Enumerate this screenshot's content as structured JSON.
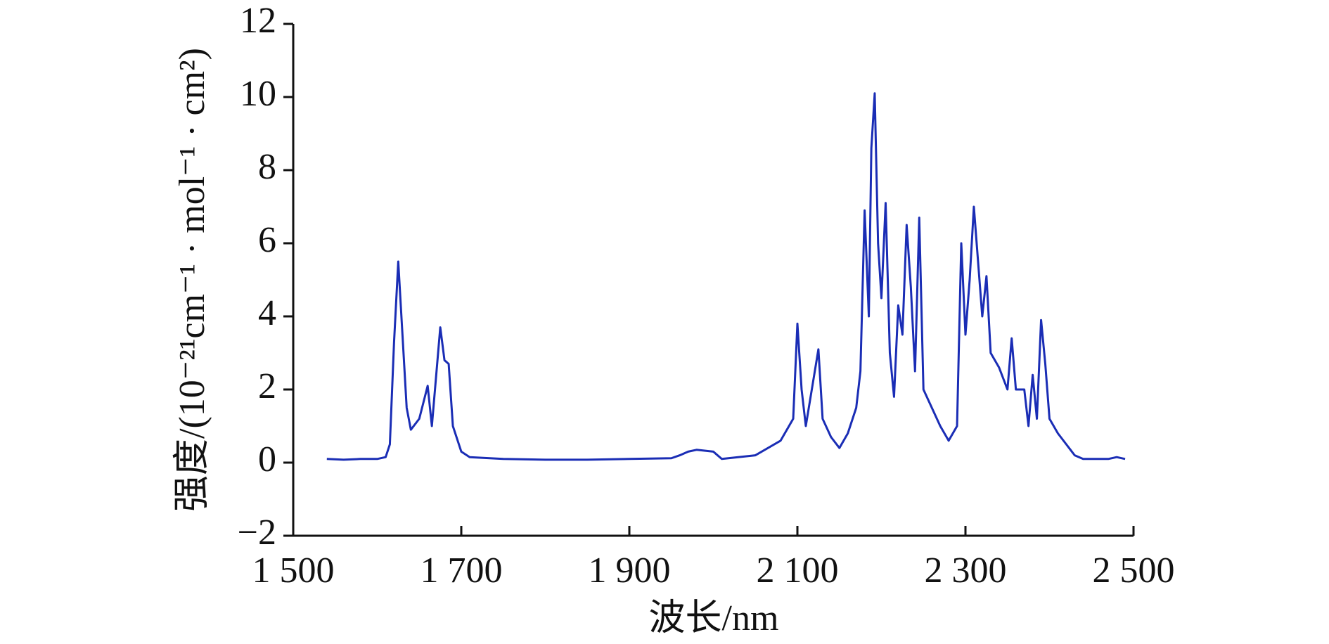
{
  "chart_data": {
    "type": "line",
    "xlabel": "波长/nm",
    "ylabel": "强度/(10⁻²¹cm⁻¹ · mol⁻¹ · cm²)",
    "xlim": [
      1500,
      2500
    ],
    "xticks": [
      {
        "value": 1500,
        "label": "1 500"
      },
      {
        "value": 1700,
        "label": "1 700"
      },
      {
        "value": 1900,
        "label": "1 900"
      },
      {
        "value": 2100,
        "label": "2 100"
      },
      {
        "value": 2300,
        "label": "2 300"
      },
      {
        "value": 2500,
        "label": "2 500"
      }
    ],
    "ylim": [
      -2,
      12
    ],
    "yticks": [
      {
        "value": -2,
        "label": "−2"
      },
      0,
      2,
      4,
      6,
      8,
      10,
      12
    ],
    "series": [
      {
        "color": "#1a2db5",
        "x": [
          1540,
          1560,
          1580,
          1600,
          1610,
          1615,
          1620,
          1625,
          1630,
          1635,
          1640,
          1650,
          1660,
          1665,
          1675,
          1680,
          1685,
          1690,
          1700,
          1710,
          1750,
          1800,
          1850,
          1900,
          1950,
          1960,
          1970,
          1980,
          2000,
          2010,
          2050,
          2080,
          2095,
          2100,
          2105,
          2110,
          2120,
          2125,
          2130,
          2140,
          2150,
          2160,
          2170,
          2175,
          2180,
          2185,
          2188,
          2192,
          2196,
          2200,
          2205,
          2210,
          2215,
          2220,
          2225,
          2230,
          2235,
          2240,
          2245,
          2250,
          2260,
          2270,
          2280,
          2290,
          2295,
          2300,
          2305,
          2310,
          2315,
          2320,
          2325,
          2330,
          2340,
          2350,
          2355,
          2360,
          2370,
          2375,
          2380,
          2385,
          2390,
          2395,
          2400,
          2410,
          2420,
          2430,
          2440,
          2450,
          2470,
          2480,
          2490
        ],
        "values": [
          0.1,
          0.08,
          0.1,
          0.1,
          0.15,
          0.5,
          3.3,
          5.5,
          3.5,
          1.5,
          0.9,
          1.2,
          2.1,
          1.0,
          3.7,
          2.8,
          2.7,
          1.0,
          0.3,
          0.15,
          0.1,
          0.08,
          0.08,
          0.1,
          0.12,
          0.2,
          0.3,
          0.35,
          0.3,
          0.1,
          0.2,
          0.6,
          1.2,
          3.8,
          2.0,
          1.0,
          2.4,
          3.1,
          1.2,
          0.7,
          0.4,
          0.8,
          1.5,
          2.5,
          6.9,
          4.0,
          8.6,
          10.1,
          6.0,
          4.5,
          7.1,
          3.0,
          1.8,
          4.3,
          3.5,
          6.5,
          4.8,
          2.5,
          6.7,
          2.0,
          1.5,
          1.0,
          0.6,
          1.0,
          6.0,
          3.5,
          5.0,
          7.0,
          5.5,
          4.0,
          5.1,
          3.0,
          2.6,
          2.0,
          3.4,
          2.0,
          2.0,
          1.0,
          2.4,
          1.2,
          3.9,
          2.7,
          1.2,
          0.8,
          0.5,
          0.2,
          0.1,
          0.1,
          0.1,
          0.15,
          0.1
        ]
      }
    ]
  }
}
